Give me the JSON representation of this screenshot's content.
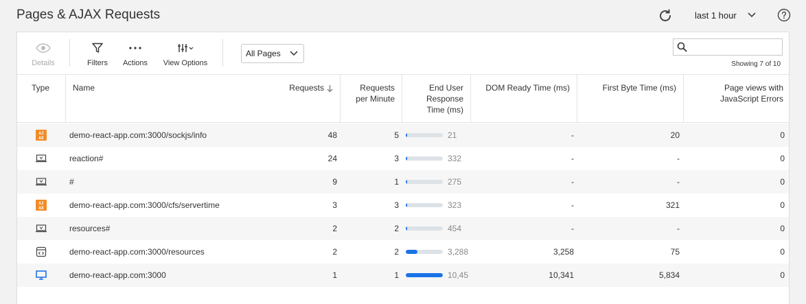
{
  "header": {
    "title": "Pages & AJAX Requests",
    "time_range": "last 1 hour",
    "refresh_icon": "refresh-icon",
    "help_icon": "help-icon"
  },
  "toolbar": {
    "details_label": "Details",
    "filters_label": "Filters",
    "actions_label": "Actions",
    "view_options_label": "View Options",
    "pages_select_value": "All Pages",
    "search_placeholder": "",
    "showing_text": "Showing 7 of 10"
  },
  "columns": {
    "type": "Type",
    "name": "Name",
    "requests": "Requests",
    "requests_per_minute_1": "Requests",
    "requests_per_minute_2": "per Minute",
    "end_user_1": "End User",
    "end_user_2": "Response",
    "end_user_3": "Time (ms)",
    "dom_ready": "DOM Ready Time (ms)",
    "first_byte": "First Byte Time (ms)",
    "js_errors_1": "Page views with",
    "js_errors_2": "JavaScript Errors"
  },
  "colors": {
    "accent": "#1a73e8",
    "ajax_icon": "#f28c28",
    "bar_track": "#dde2e7"
  },
  "rows": [
    {
      "type": "ajax-icon",
      "name": "demo-react-app.com:3000/sockjs/info",
      "requests": "48",
      "rpm": "5",
      "eurt": "21",
      "eurt_fraction": 0.02,
      "dom": "-",
      "fbt": "20",
      "js_errors": "0"
    },
    {
      "type": "virtual-page-icon",
      "name": "reaction#",
      "requests": "24",
      "rpm": "3",
      "eurt": "332",
      "eurt_fraction": 0.03,
      "dom": "-",
      "fbt": "-",
      "js_errors": "0"
    },
    {
      "type": "virtual-page-icon",
      "name": "#",
      "requests": "9",
      "rpm": "1",
      "eurt": "275",
      "eurt_fraction": 0.03,
      "dom": "-",
      "fbt": "-",
      "js_errors": "0"
    },
    {
      "type": "ajax-icon",
      "name": "demo-react-app.com:3000/cfs/servertime",
      "requests": "3",
      "rpm": "3",
      "eurt": "323",
      "eurt_fraction": 0.03,
      "dom": "-",
      "fbt": "321",
      "js_errors": "0"
    },
    {
      "type": "virtual-page-icon",
      "name": "resources#",
      "requests": "2",
      "rpm": "2",
      "eurt": "454",
      "eurt_fraction": 0.04,
      "dom": "-",
      "fbt": "-",
      "js_errors": "0"
    },
    {
      "type": "iframe-icon",
      "name": "demo-react-app.com:3000/resources",
      "requests": "2",
      "rpm": "2",
      "eurt": "3,288",
      "eurt_fraction": 0.31,
      "dom": "3,258",
      "fbt": "75",
      "js_errors": "0"
    },
    {
      "type": "base-page-icon",
      "name": "demo-react-app.com:3000",
      "requests": "1",
      "rpm": "1",
      "eurt": "10,45",
      "eurt_fraction": 1.0,
      "dom": "10,341",
      "fbt": "5,834",
      "js_errors": "0"
    }
  ]
}
